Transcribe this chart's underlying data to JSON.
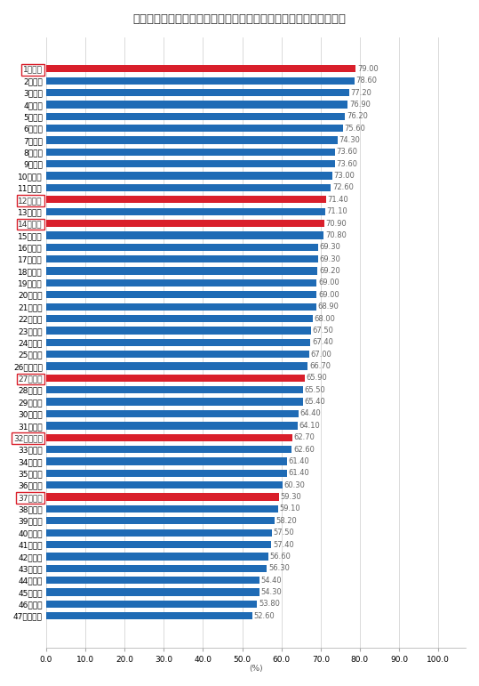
{
  "title": "ＦＴＴＨサービス都道府県別普及率グラフ（令和６年３月末現在）",
  "categories": [
    "1滋賀県",
    "2愛知県",
    "3静岡県",
    "4長野県",
    "5富山県",
    "6三重県",
    "7山梨県",
    "8福井県",
    "9香川県",
    "10岐阜県",
    "11栃木県",
    "12京都府",
    "13徳島県",
    "14奈良県",
    "15石川県",
    "16新潟県",
    "17福島県",
    "18茨城県",
    "19東京都",
    "20群馬県",
    "21宮城県",
    "22岡山県",
    "23鳥取県",
    "24山形県",
    "25島根県",
    "26神奈川県",
    "27大阪府",
    "28広島県",
    "29岩手県",
    "30千葉県",
    "31大分県",
    "32和歌山県",
    "33沖縄県",
    "34秋田県",
    "35埼玉県",
    "36福岡県",
    "37兵庫県",
    "38愛媛県",
    "39高知県",
    "40山口県",
    "41宮崎県",
    "42熊本県",
    "43佐賀県",
    "44北海道",
    "45青森県",
    "46長崎県",
    "47鹿児島県"
  ],
  "values": [
    79.0,
    78.6,
    77.2,
    76.9,
    76.2,
    75.6,
    74.3,
    73.6,
    73.6,
    73.0,
    72.6,
    71.4,
    71.1,
    70.9,
    70.8,
    69.3,
    69.3,
    69.2,
    69.0,
    69.0,
    68.9,
    68.0,
    67.5,
    67.4,
    67.0,
    66.7,
    65.9,
    65.5,
    65.4,
    64.4,
    64.1,
    62.7,
    62.6,
    61.4,
    61.4,
    60.3,
    59.3,
    59.1,
    58.2,
    57.5,
    57.4,
    56.6,
    56.3,
    54.4,
    54.3,
    53.8,
    52.6
  ],
  "red_indices": [
    0,
    11,
    13,
    26,
    31,
    36
  ],
  "bar_color_blue": "#1F6BB5",
  "bar_color_red": "#D91F2B",
  "background_color": "#FFFFFF",
  "title_fontsize": 9.5,
  "label_fontsize": 6.5,
  "value_fontsize": 6.0,
  "xlabel": "(%)",
  "xticks": [
    0.0,
    10.0,
    20.0,
    30.0,
    40.0,
    50.0,
    60.0,
    70.0,
    80.0,
    90.0,
    100.0
  ]
}
